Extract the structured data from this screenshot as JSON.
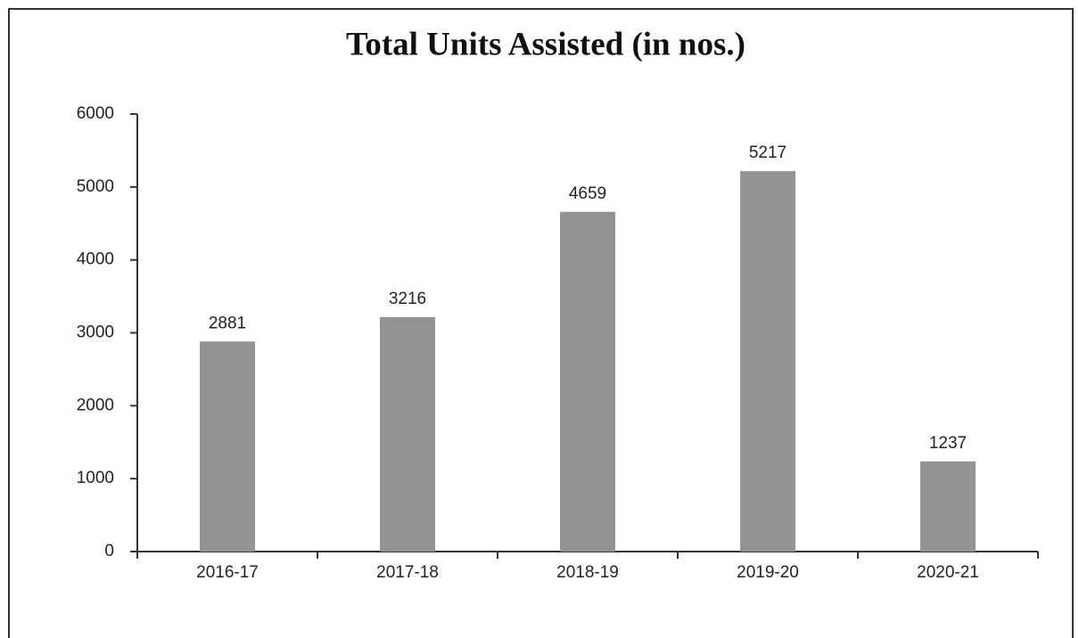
{
  "chart_data": {
    "type": "bar",
    "title": "Total Units Assisted (in nos.)",
    "categories": [
      "2016-17",
      "2017-18",
      "2018-19",
      "2019-20",
      "2020-21"
    ],
    "values": [
      2881,
      3216,
      4659,
      5217,
      1237
    ],
    "color": "#939393",
    "ylim": [
      0,
      6000
    ],
    "yticks": [
      0,
      1000,
      2000,
      3000,
      4000,
      5000,
      6000
    ]
  }
}
